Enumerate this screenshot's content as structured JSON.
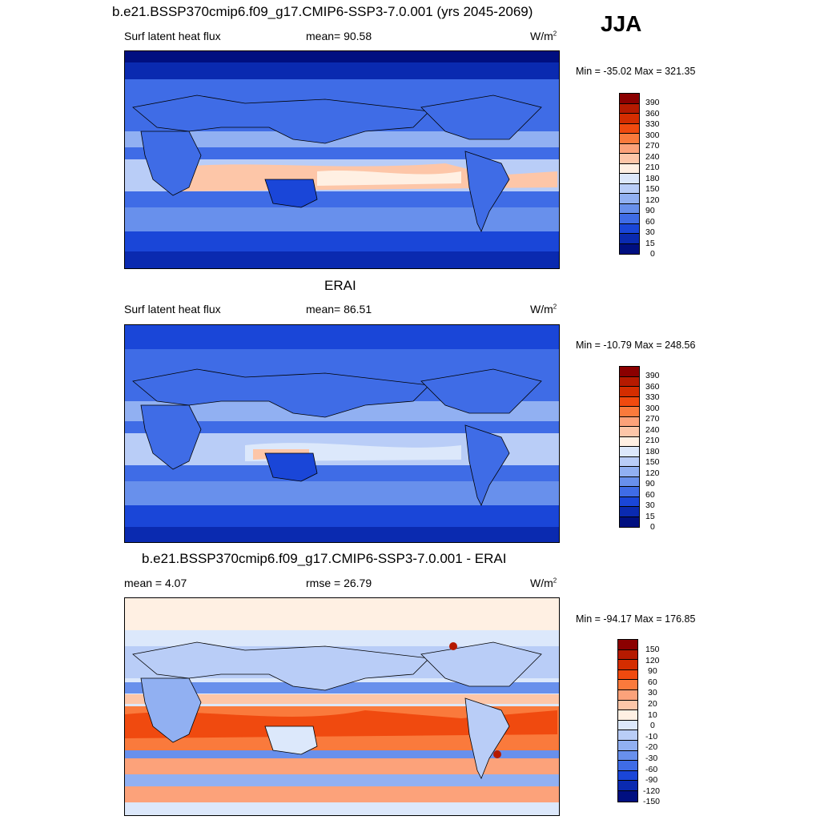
{
  "season": "JJA",
  "panel1": {
    "title": "b.e21.BSSP370cmip6.f09_g17.CMIP6-SSP3-7.0.001 (yrs 2045-2069)",
    "left": "Surf latent heat flux",
    "mid": "mean=  90.58",
    "units": "W/m",
    "units_sup": "2",
    "minmax": "Min = -35.02 Max = 321.35"
  },
  "panel2": {
    "title": "ERAI",
    "left": "Surf latent heat flux",
    "mid": "mean=  86.51",
    "units": "W/m",
    "units_sup": "2",
    "minmax": "Min = -10.79 Max = 248.56"
  },
  "panel3": {
    "title": "b.e21.BSSP370cmip6.f09_g17.CMIP6-SSP3-7.0.001 - ERAI",
    "left": "mean =   4.07",
    "mid": "rmse =  26.79",
    "units": "W/m",
    "units_sup": "2",
    "minmax": "Min = -94.17 Max = 176.85"
  },
  "colorbar_abs": {
    "labels": [
      "390",
      "360",
      "330",
      "300",
      "270",
      "240",
      "210",
      "180",
      "150",
      "120",
      "90",
      "60",
      "30",
      "15",
      "0"
    ],
    "colors": [
      "#8b0000",
      "#b51a00",
      "#d42d00",
      "#f04a0f",
      "#fa7a3c",
      "#fca27a",
      "#fdc6a8",
      "#fff0e3",
      "#dce8fb",
      "#b9cdf7",
      "#91b0f2",
      "#6890ec",
      "#3f6ce6",
      "#1a46d8",
      "#0a2ab0",
      "#000f80"
    ]
  },
  "colorbar_diff": {
    "labels": [
      "150",
      "120",
      "90",
      "60",
      "30",
      "20",
      "10",
      "0",
      "-10",
      "-20",
      "-30",
      "-60",
      "-90",
      "-120",
      "-150"
    ],
    "colors": [
      "#8b0000",
      "#b51a00",
      "#d42d00",
      "#f04a0f",
      "#fa7a3c",
      "#fca27a",
      "#fdc6a8",
      "#fff0e3",
      "#dce8fb",
      "#b9cdf7",
      "#91b0f2",
      "#6890ec",
      "#3f6ce6",
      "#1a46d8",
      "#0a2ab0",
      "#000f80"
    ]
  }
}
